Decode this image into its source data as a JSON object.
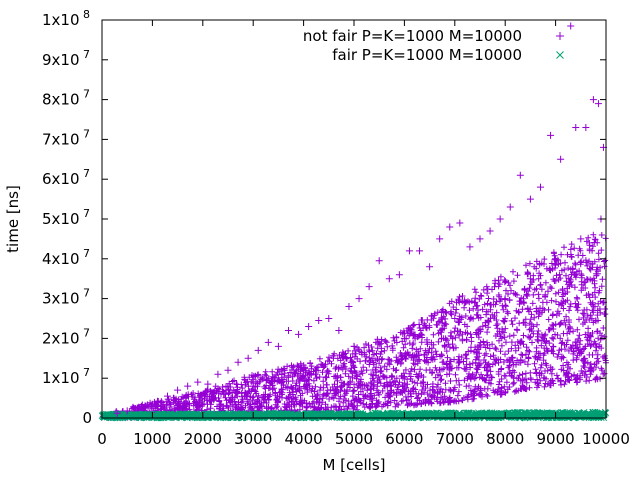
{
  "chart_data": {
    "type": "scatter",
    "xlabel": "M [cells]",
    "ylabel": "time [ns]",
    "xlim": [
      0,
      10000
    ],
    "ylim": [
      0,
      100000000
    ],
    "grid": false,
    "legend_position": "top-right",
    "x_ticks": [
      {
        "value": 0,
        "label": "0"
      },
      {
        "value": 1000,
        "label": "1000"
      },
      {
        "value": 2000,
        "label": "2000"
      },
      {
        "value": 3000,
        "label": "3000"
      },
      {
        "value": 4000,
        "label": "4000"
      },
      {
        "value": 5000,
        "label": "5000"
      },
      {
        "value": 6000,
        "label": "6000"
      },
      {
        "value": 7000,
        "label": "7000"
      },
      {
        "value": 8000,
        "label": "8000"
      },
      {
        "value": 9000,
        "label": "9000"
      },
      {
        "value": 10000,
        "label": "10000"
      }
    ],
    "y_ticks": [
      {
        "value": 0,
        "mantissa": "0",
        "exponent": ""
      },
      {
        "value": 10000000,
        "mantissa": "1x10",
        "exponent": "7"
      },
      {
        "value": 20000000,
        "mantissa": "2x10",
        "exponent": "7"
      },
      {
        "value": 30000000,
        "mantissa": "3x10",
        "exponent": "7"
      },
      {
        "value": 40000000,
        "mantissa": "4x10",
        "exponent": "7"
      },
      {
        "value": 50000000,
        "mantissa": "5x10",
        "exponent": "7"
      },
      {
        "value": 60000000,
        "mantissa": "6x10",
        "exponent": "7"
      },
      {
        "value": 70000000,
        "mantissa": "7x10",
        "exponent": "7"
      },
      {
        "value": 80000000,
        "mantissa": "8x10",
        "exponent": "7"
      },
      {
        "value": 90000000,
        "mantissa": "9x10",
        "exponent": "7"
      },
      {
        "value": 100000000,
        "mantissa": "1x10",
        "exponent": "8"
      }
    ],
    "series": [
      {
        "name": "not fair P=K=1000 M=10000",
        "marker": "plus",
        "color": "#9400d3",
        "points": [
          [
            300,
            1200000
          ],
          [
            500,
            1800000
          ],
          [
            700,
            2500000
          ],
          [
            900,
            3300000
          ],
          [
            1100,
            4200000
          ],
          [
            1300,
            5500000
          ],
          [
            1500,
            7000000
          ],
          [
            1700,
            8000000
          ],
          [
            1900,
            9000000
          ],
          [
            2100,
            8500000
          ],
          [
            2300,
            11000000
          ],
          [
            2500,
            12000000
          ],
          [
            2700,
            14000000
          ],
          [
            2900,
            15000000
          ],
          [
            3100,
            17000000
          ],
          [
            3300,
            19000000
          ],
          [
            3500,
            18000000
          ],
          [
            3700,
            22000000
          ],
          [
            3900,
            21000000
          ],
          [
            4100,
            23000000
          ],
          [
            4300,
            24500000
          ],
          [
            4500,
            25000000
          ],
          [
            4700,
            22000000
          ],
          [
            4900,
            28000000
          ],
          [
            5100,
            30000000
          ],
          [
            5300,
            33000000
          ],
          [
            5500,
            39500000
          ],
          [
            5700,
            35000000
          ],
          [
            5900,
            36000000
          ],
          [
            6100,
            42000000
          ],
          [
            6300,
            42000000
          ],
          [
            6500,
            38000000
          ],
          [
            6700,
            45000000
          ],
          [
            6900,
            48000000
          ],
          [
            7100,
            49000000
          ],
          [
            7300,
            43000000
          ],
          [
            7500,
            45000000
          ],
          [
            7700,
            47000000
          ],
          [
            7900,
            50000000
          ],
          [
            8100,
            53000000
          ],
          [
            8300,
            61000000
          ],
          [
            8500,
            55000000
          ],
          [
            8700,
            58000000
          ],
          [
            8900,
            71000000
          ],
          [
            9100,
            65000000
          ],
          [
            9300,
            98500000
          ],
          [
            9400,
            73000000
          ],
          [
            9600,
            73000000
          ],
          [
            9750,
            80000000
          ],
          [
            9850,
            79000000
          ],
          [
            9950,
            68000000
          ],
          [
            8000,
            30000000
          ],
          [
            8500,
            35000000
          ],
          [
            9000,
            40000000
          ],
          [
            9500,
            45000000
          ],
          [
            9900,
            50000000
          ],
          [
            6000,
            20000000
          ],
          [
            7000,
            25000000
          ],
          [
            5000,
            18000000
          ],
          [
            4000,
            12000000
          ],
          [
            3000,
            8000000
          ]
        ],
        "bands": [
          {
            "x": [
              0,
              1000,
              2000,
              3000,
              4000,
              5000,
              6000,
              7000,
              8000,
              9000,
              10000
            ],
            "low": [
              0,
              100000,
              200000,
              500000,
              1000000,
              2000000,
              3000000,
              4000000,
              6000000,
              8000000,
              10000000
            ],
            "high": [
              1000000,
              4000000,
              7000000,
              11000000,
              14000000,
              18000000,
              22000000,
              30000000,
              36000000,
              42000000,
              48000000
            ]
          }
        ]
      },
      {
        "name": "fair P=K=1000 M=10000",
        "marker": "cross",
        "color": "#009e73",
        "points": [],
        "bands": [
          {
            "x": [
              0,
              10000
            ],
            "low": [
              0,
              0
            ],
            "high": [
              1000000,
              1500000
            ]
          }
        ]
      }
    ]
  }
}
